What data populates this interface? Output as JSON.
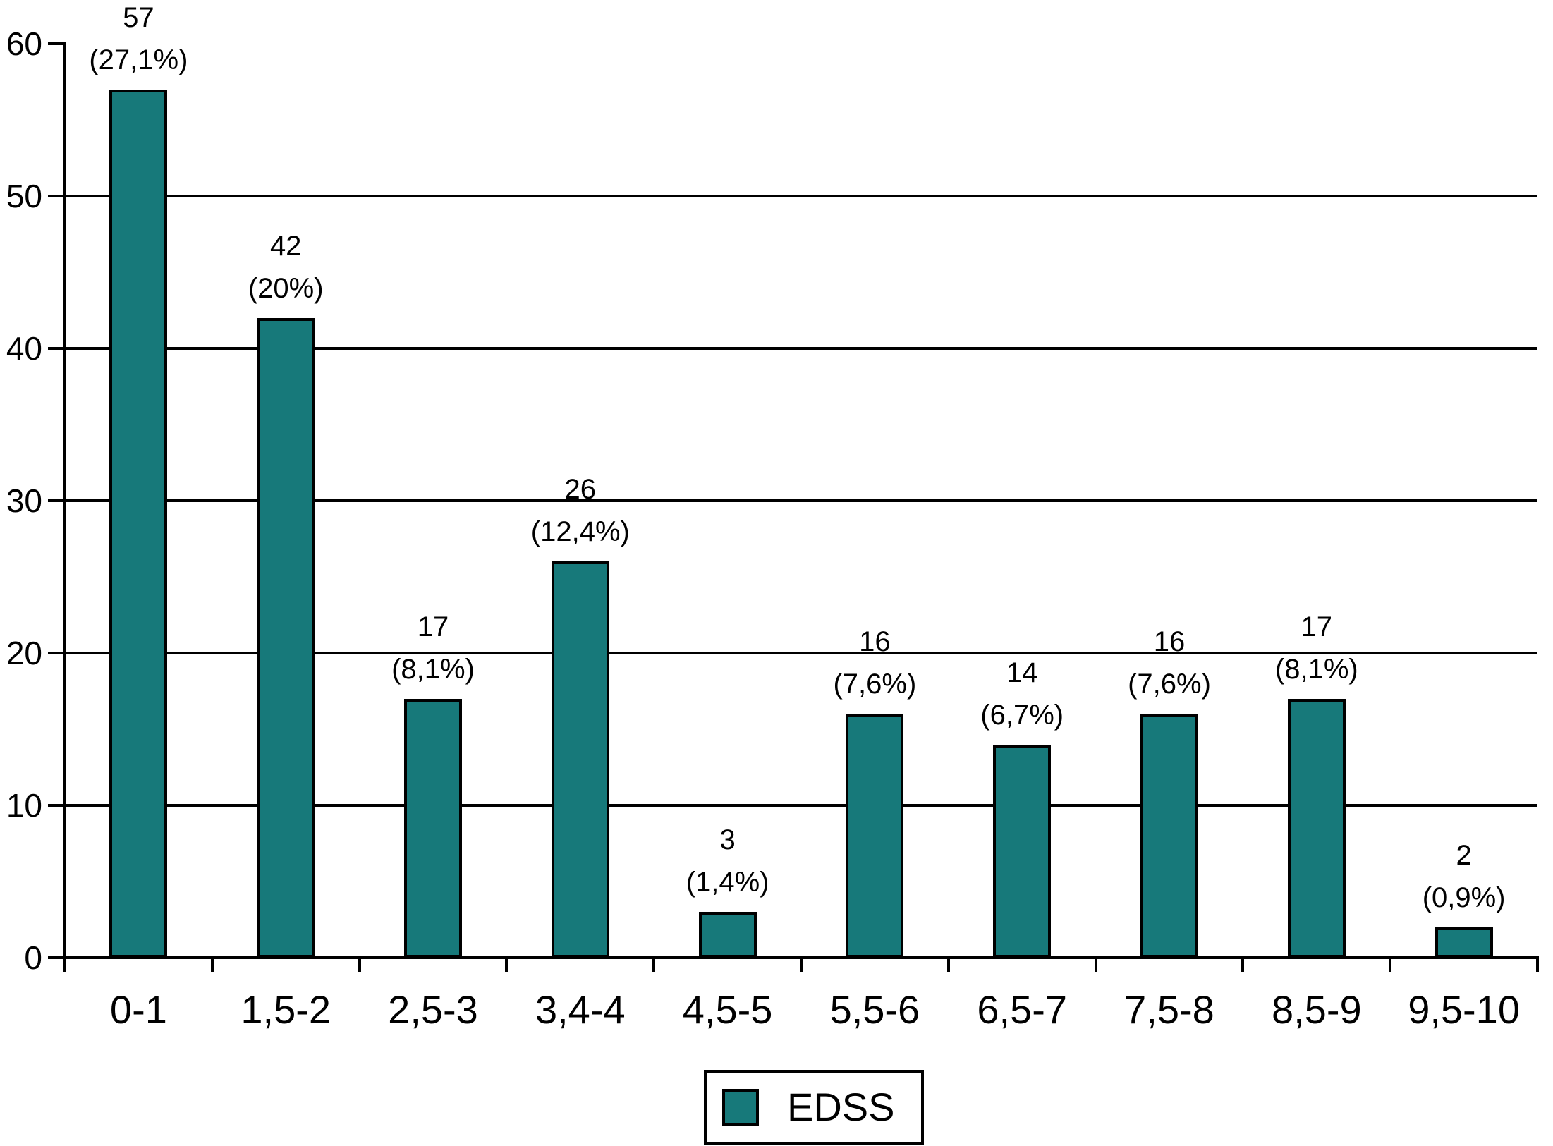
{
  "chart_data": {
    "type": "bar",
    "title": "",
    "categories": [
      "0-1",
      "1,5-2",
      "2,5-3",
      "3,4-4",
      "4,5-5",
      "5,5-6",
      "6,5-7",
      "7,5-8",
      "8,5-9",
      "9,5-10"
    ],
    "values": [
      57,
      42,
      17,
      26,
      3,
      16,
      14,
      16,
      17,
      2
    ],
    "count_labels": [
      "57",
      "42",
      "17",
      "26",
      "3",
      "16",
      "14",
      "16",
      "17",
      "2"
    ],
    "percent_labels": [
      "(27,1%)",
      "(20%)",
      "(8,1%)",
      "(12,4%)",
      "(1,4%)",
      "(7,6%)",
      "(6,7%)",
      "(7,6%)",
      "(8,1%)",
      "(0,9%)"
    ],
    "xlabel": "",
    "ylabel": "",
    "ylim": [
      0,
      60
    ],
    "yticks": [
      0,
      10,
      20,
      30,
      40,
      50,
      60
    ],
    "grid": "horizontal",
    "bar_color": "#17797A",
    "axis_color": "#000000",
    "legend": {
      "position": "bottom",
      "entries": [
        {
          "label": "EDSS",
          "color": "#17797A"
        }
      ]
    }
  }
}
